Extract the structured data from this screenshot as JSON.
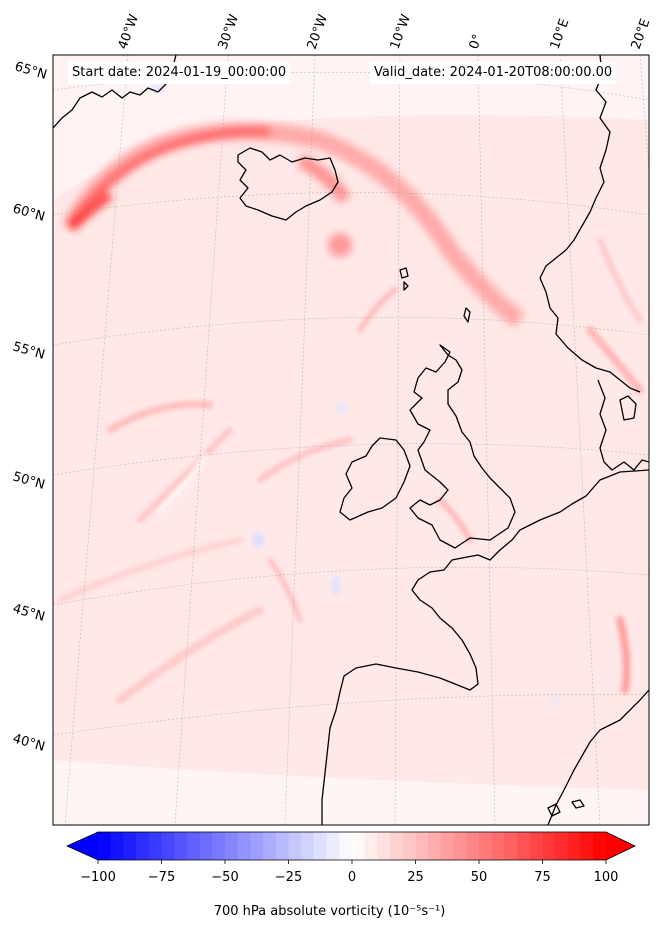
{
  "header": {
    "start_date": "Start date: 2024-01-19_00:00:00",
    "valid_date": "Valid_date: 2024-01-20T08:00:00.00"
  },
  "map": {
    "lon_labels": [
      "40°W",
      "30°W",
      "20°W",
      "10°W",
      "0°",
      "10°E",
      "20°E"
    ],
    "lat_labels": [
      "65°N",
      "60°N",
      "55°N",
      "50°N",
      "45°N",
      "40°N"
    ],
    "field": "700 hPa absolute vorticity",
    "regions": [
      "Iceland",
      "Great Britain",
      "Ireland",
      "Norway",
      "Denmark",
      "France",
      "Iberia"
    ]
  },
  "colorbar": {
    "label": "700 hPa absolute vorticity (10⁻⁵s⁻¹)",
    "ticks": [
      "−100",
      "−75",
      "−50",
      "−25",
      "0",
      "25",
      "50",
      "75",
      "100"
    ],
    "min": -100,
    "max": 100,
    "levels": 40,
    "extend": "both",
    "colormap": "bwr",
    "color_min": "#0000ff",
    "color_mid": "#ffffff",
    "color_max": "#ff0000"
  }
}
